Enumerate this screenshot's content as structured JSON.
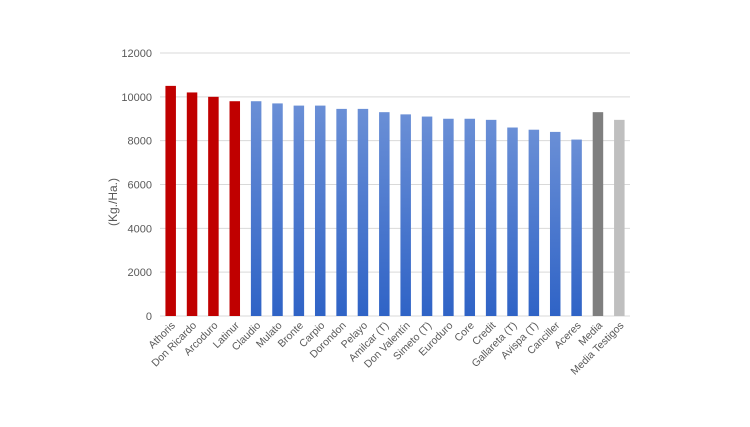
{
  "chart_data": {
    "type": "bar",
    "ylabel": "(Kg./Ha.)",
    "ylim": [
      0,
      12000
    ],
    "yticks": [
      0,
      2000,
      4000,
      6000,
      8000,
      10000,
      12000
    ],
    "grid": true,
    "colors": {
      "red": "#c00000",
      "blue_top": "#6a8fd6",
      "blue_bottom": "#2f63c6",
      "dark_gray": "#7f7f7f",
      "light_gray": "#bfbfbf",
      "grid": "#d9d9d9",
      "axis_text": "#595959"
    },
    "categories": [
      "Athoris",
      "Don Ricardo",
      "Arcoduro",
      "Latinur",
      "Claudio",
      "Mulato",
      "Bronte",
      "Carpio",
      "Dorondon",
      "Pelayo",
      "Amilcar (T)",
      "Don Valentín",
      "Simeto (T)",
      "Euroduro",
      "Core",
      "Credit",
      "Gallareta (T)",
      "Avispa (T)",
      "Canciller",
      "Aceres",
      "Media",
      "Media Testigos"
    ],
    "values": [
      10500,
      10200,
      10000,
      9800,
      9800,
      9700,
      9600,
      9600,
      9450,
      9450,
      9300,
      9200,
      9100,
      9000,
      9000,
      8950,
      8600,
      8500,
      8400,
      8050,
      9300,
      8950
    ],
    "bar_colors": [
      "red",
      "red",
      "red",
      "red",
      "blue",
      "blue",
      "blue",
      "blue",
      "blue",
      "blue",
      "blue",
      "blue",
      "blue",
      "blue",
      "blue",
      "blue",
      "blue",
      "blue",
      "blue",
      "blue",
      "dark_gray",
      "light_gray"
    ]
  }
}
